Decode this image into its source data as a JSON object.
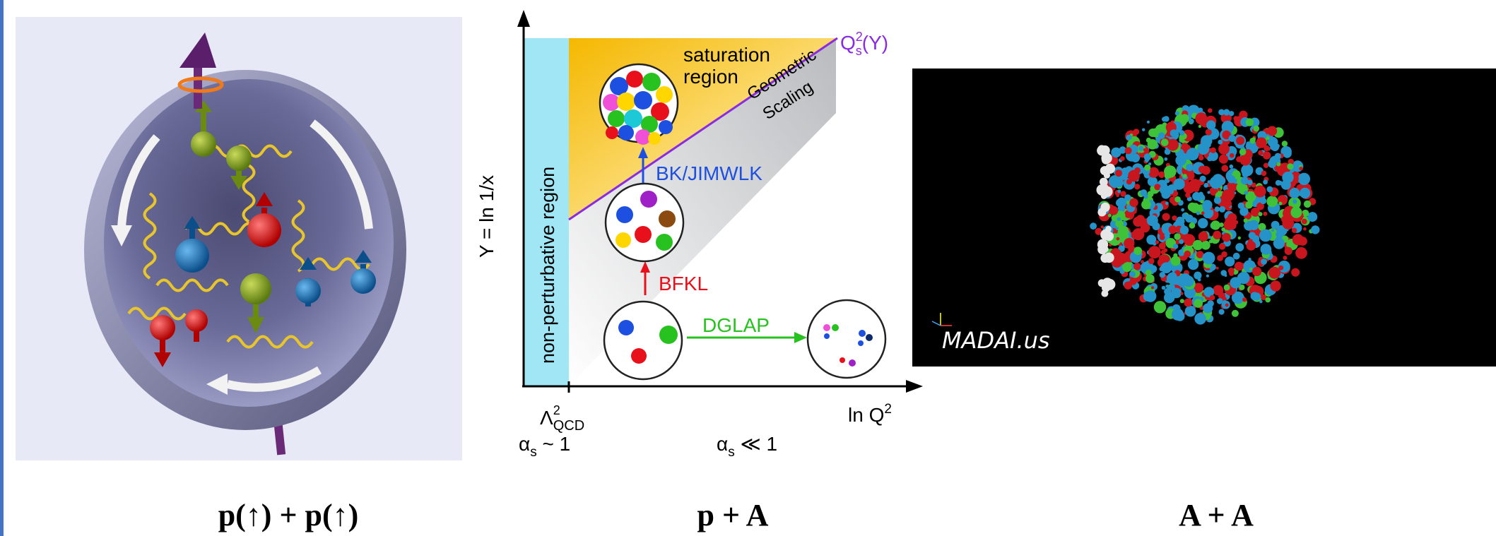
{
  "captions": {
    "proton_proton": "p(↑) + p(↑)",
    "proton_nucleus": "p + A",
    "nucleus_nucleus": "A + A"
  },
  "diagram": {
    "y_axis_label": "Y = ln 1/x",
    "x_axis_label": "ln Q",
    "x_axis_label_sup": "2",
    "lambda_label": "Λ",
    "lambda_sup": "2",
    "lambda_sub": "QCD",
    "alpha_strong": "α",
    "alpha_strong_sub": "s",
    "alpha_strong_rel": " ~ 1",
    "alpha_weak": "α",
    "alpha_weak_sub": "s",
    "alpha_weak_rel": " ≪ 1",
    "qs_label": "Q",
    "qs_sup": "2",
    "qs_sub": "s",
    "qs_arg": "(Y)",
    "nonperturbative_label": "non-perturbative region",
    "saturation_label_line1": "saturation",
    "saturation_label_line2": "region",
    "geometric_label_line1": "Geometric",
    "geometric_label_line2": "Scaling",
    "bk_label": "BK/JIMWLK",
    "bfkl_label": "BFKL",
    "dglap_label": "DGLAP",
    "colors": {
      "nonperturbative": "#a0e6f5",
      "saturation": "#f5b800",
      "qs_line": "#8a2be2",
      "bk": "#1d4fe0",
      "bfkl": "#e8101a",
      "dglap": "#28c220"
    }
  },
  "heavy_ion": {
    "watermark": "MADAI.us",
    "colors": {
      "red": "#c8161e",
      "blue": "#2592c8",
      "green": "#3fc23a",
      "white": "#e6e6e6"
    }
  },
  "proton_icons": {
    "spin_arrow": "spin-arrow-icon",
    "quark": "quark-icon",
    "gluon": "gluon-spring-icon"
  }
}
